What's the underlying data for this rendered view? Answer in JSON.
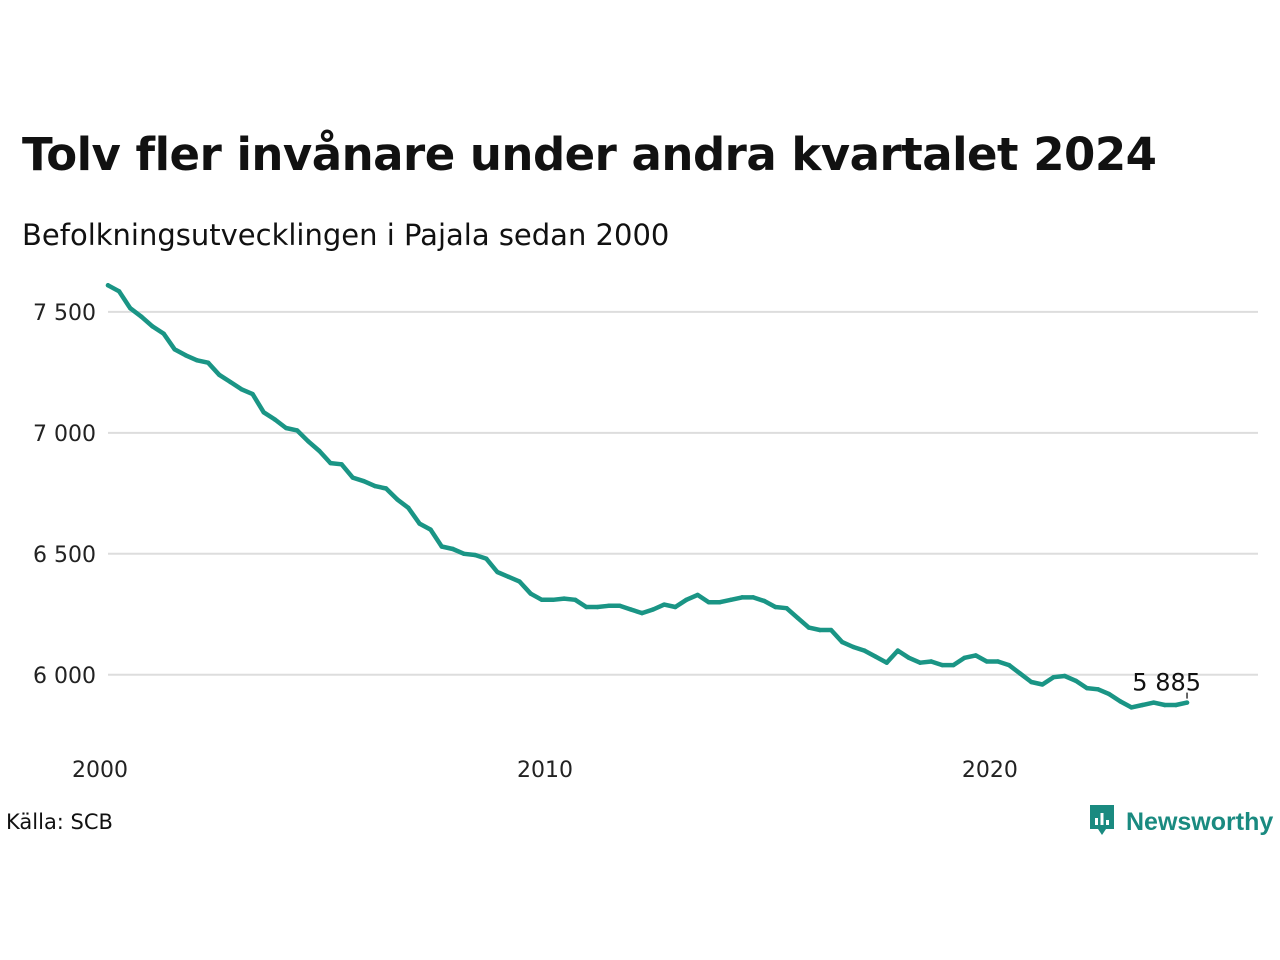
{
  "title": "Tolv fler invånare under andra kvartalet 2024",
  "subtitle": "Befolkningsutvecklingen i Pajala sedan 2000",
  "source": "Källa: SCB",
  "brand": {
    "name": "Newsworthy",
    "color": "#1a8a80",
    "icon": "newsworthy-logo-icon"
  },
  "colors": {
    "line": "#1a9585",
    "grid": "#dddddd"
  },
  "chart_data": {
    "type": "line",
    "title": "Tolv fler invånare under andra kvartalet 2024",
    "subtitle": "Befolkningsutvecklingen i Pajala sedan 2000",
    "xlabel": "",
    "ylabel": "",
    "xlim": [
      2000,
      2025.8
    ],
    "ylim": [
      5780,
      7640
    ],
    "grid": true,
    "x_ticks": [
      {
        "value": 2000,
        "label": "2000"
      },
      {
        "value": 2010,
        "label": "2010"
      },
      {
        "value": 2020,
        "label": "2020"
      }
    ],
    "y_ticks": [
      {
        "value": 6000,
        "label": "6 000"
      },
      {
        "value": 6500,
        "label": "6 500"
      },
      {
        "value": 7000,
        "label": "7 000"
      },
      {
        "value": 7500,
        "label": "7 500"
      }
    ],
    "end_label": "5 885",
    "series": [
      {
        "x": [
          2000.0,
          2000.25,
          2000.5,
          2000.75,
          2001.0,
          2001.25,
          2001.5,
          2001.75,
          2002.0,
          2002.25,
          2002.5,
          2002.75,
          2003.0,
          2003.25,
          2003.5,
          2003.75,
          2004.0,
          2004.25,
          2004.5,
          2004.75,
          2005.0,
          2005.25,
          2005.5,
          2005.75,
          2006.0,
          2006.25,
          2006.5,
          2006.75,
          2007.0,
          2007.25,
          2007.5,
          2007.75,
          2008.0,
          2008.25,
          2008.5,
          2008.75,
          2009.0,
          2009.25,
          2009.5,
          2009.75,
          2010.0,
          2010.25,
          2010.5,
          2010.75,
          2011.0,
          2011.25,
          2011.5,
          2011.75,
          2012.0,
          2012.25,
          2012.5,
          2012.75,
          2013.0,
          2013.25,
          2013.5,
          2013.75,
          2014.0,
          2014.25,
          2014.5,
          2014.75,
          2015.0,
          2015.25,
          2015.5,
          2015.75,
          2016.0,
          2016.25,
          2016.5,
          2016.75,
          2017.0,
          2017.25,
          2017.5,
          2017.75,
          2018.0,
          2018.25,
          2018.5,
          2018.75,
          2019.0,
          2019.25,
          2019.5,
          2019.75,
          2020.0,
          2020.25,
          2020.5,
          2020.75,
          2021.0,
          2021.25,
          2021.5,
          2021.75,
          2022.0,
          2022.25,
          2022.5,
          2022.75,
          2023.0,
          2023.25,
          2023.5,
          2023.75,
          2024.0,
          2024.25
        ],
        "values": [
          7610,
          7585,
          7515,
          7480,
          7440,
          7410,
          7345,
          7320,
          7300,
          7290,
          7240,
          7210,
          7180,
          7160,
          7085,
          7055,
          7020,
          7010,
          6965,
          6925,
          6875,
          6870,
          6815,
          6800,
          6780,
          6770,
          6725,
          6690,
          6625,
          6600,
          6530,
          6520,
          6500,
          6495,
          6480,
          6425,
          6405,
          6385,
          6335,
          6310,
          6310,
          6315,
          6310,
          6280,
          6280,
          6285,
          6285,
          6270,
          6255,
          6270,
          6290,
          6280,
          6310,
          6330,
          6300,
          6300,
          6310,
          6320,
          6320,
          6305,
          6280,
          6275,
          6235,
          6195,
          6185,
          6185,
          6135,
          6115,
          6100,
          6075,
          6050,
          6100,
          6070,
          6050,
          6055,
          6040,
          6040,
          6070,
          6080,
          6055,
          6055,
          6040,
          6005,
          5970,
          5960,
          5990,
          5995,
          5975,
          5945,
          5940,
          5920,
          5890,
          5865,
          5875,
          5885,
          5875,
          5875,
          5885
        ]
      }
    ]
  }
}
